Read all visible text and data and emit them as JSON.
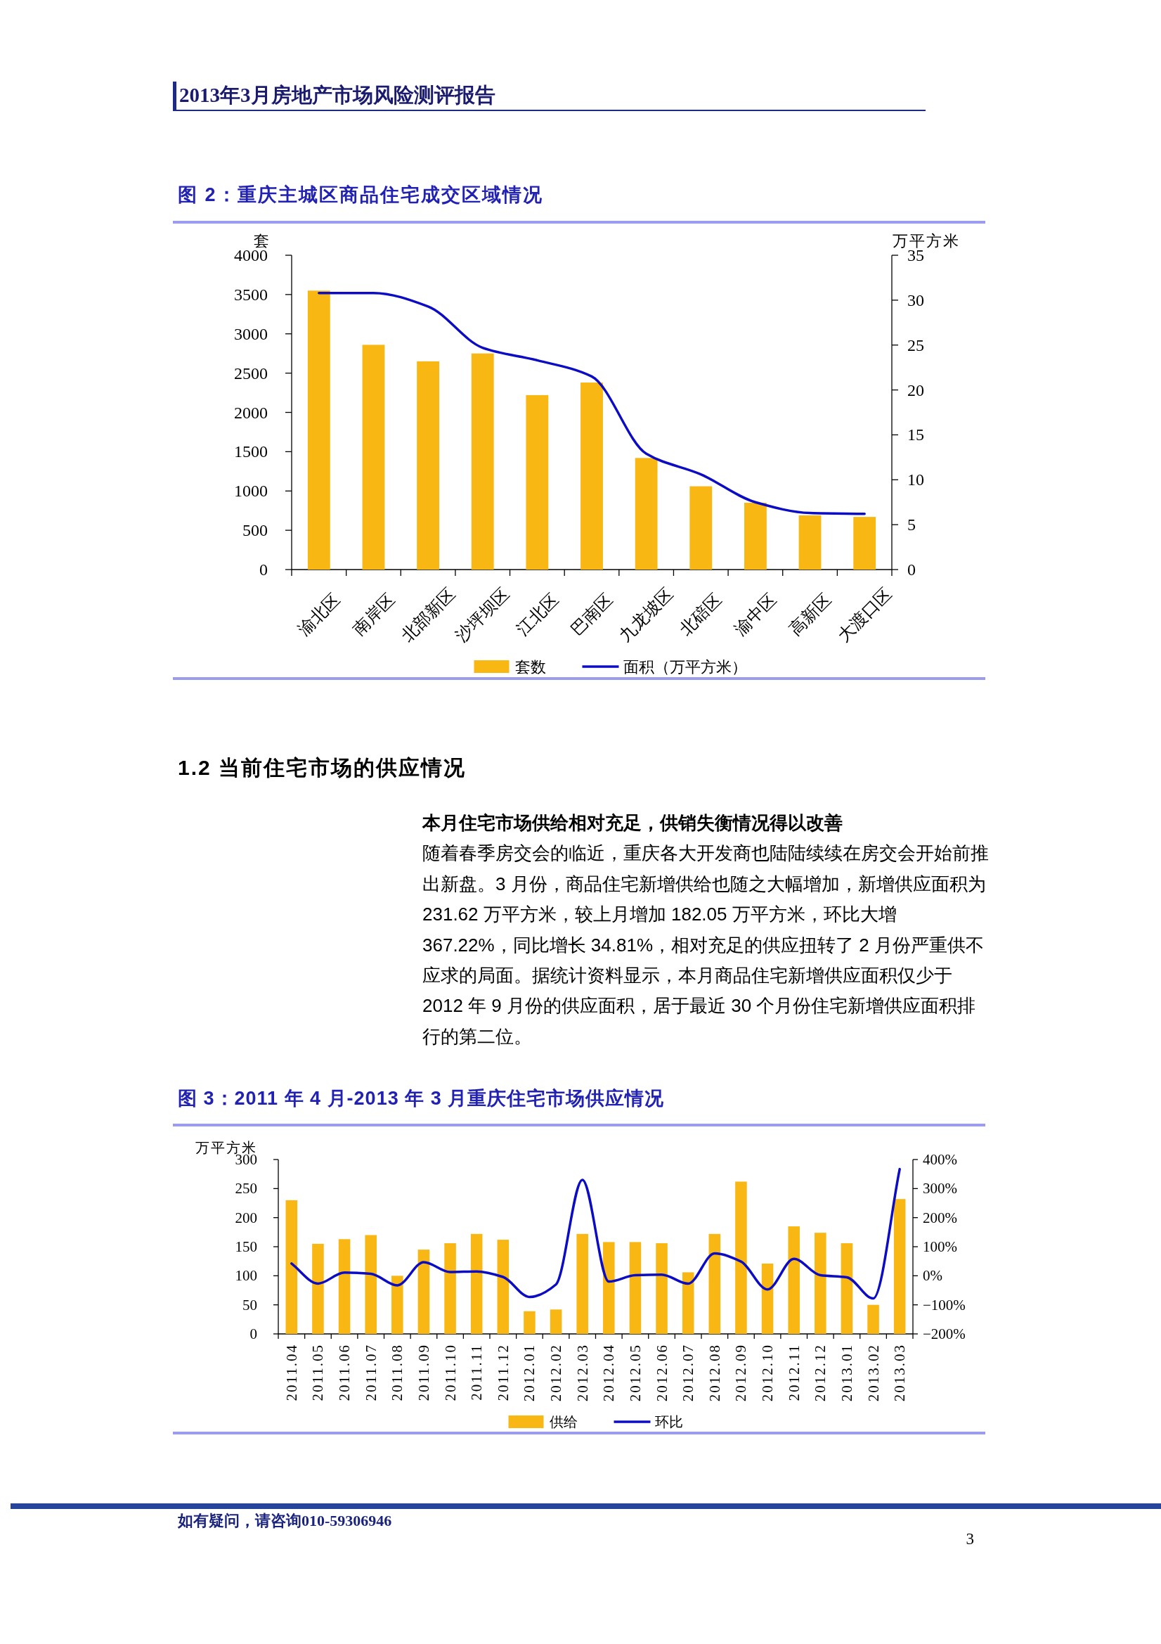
{
  "chart_data": [
    {
      "type": "other",
      "title": "2013年3月房地产市场风险测评报告"
    },
    {
      "type": "bar",
      "title": "图 2：重庆主城区商品住宅成交区域情况",
      "categories": [
        "渝北区",
        "南岸区",
        "北部新区",
        "沙坪坝区",
        "江北区",
        "巴南区",
        "九龙坡区",
        "北碚区",
        "渝中区",
        "高新区",
        "大渡口区"
      ],
      "series": [
        {
          "name": "套数",
          "type": "bar",
          "color": "#f9b714",
          "values": [
            3550,
            2860,
            2650,
            2750,
            2220,
            2380,
            1420,
            1060,
            850,
            690,
            670
          ]
        },
        {
          "name": "面积（万平方米）",
          "type": "line",
          "axis": "y2",
          "color": "#0c0cc4",
          "values": [
            30.8,
            30.8,
            29.3,
            24.7,
            23.3,
            21.5,
            12.9,
            10.6,
            7.5,
            6.3,
            6.2
          ]
        }
      ],
      "ylabel": "套",
      "y2label": "万平方米",
      "ylim": [
        0,
        4000
      ],
      "yticks": [
        0,
        500,
        1000,
        1500,
        2000,
        2500,
        3000,
        3500,
        4000
      ],
      "y2lim": [
        0,
        35
      ],
      "y2ticks": [
        0,
        5,
        10,
        15,
        20,
        25,
        30,
        35
      ],
      "legend": "bottom"
    },
    {
      "type": "other",
      "title": "1.2 当前住宅市场的供应情况",
      "subtitle": "本月住宅市场供给相对充足，供销失衡情况得以改善",
      "annotations": [
        "随着春季房交会的临近，重庆各大开发商也陆陆续续在房交会开始前推出新盘。3 月份，商品住宅新增供给也随之大幅增加，新增供应面积为 231.62 万平方米，较上月增加 182.05 万平方米，环比大增 367.22%，同比增长 34.81%，相对充足的供应扭转了 2 月份严重供不应求的局面。据统计资料显示，本月商品住宅新增供应面积仅少于 2012 年 9 月份的供应面积，居于最近 30 个月份住宅新增供应面积排行的第二位。"
      ]
    },
    {
      "type": "bar",
      "title": "图 3：2011 年 4 月-2013 年 3 月重庆住宅市场供应情况",
      "categories": [
        "2011.04",
        "2011.05",
        "2011.06",
        "2011.07",
        "2011.08",
        "2011.09",
        "2011.10",
        "2011.11",
        "2011.12",
        "2012.01",
        "2012.02",
        "2012.03",
        "2012.04",
        "2012.05",
        "2012.06",
        "2012.07",
        "2012.08",
        "2012.09",
        "2012.10",
        "2012.11",
        "2012.12",
        "2013.01",
        "2013.02",
        "2013.03"
      ],
      "series": [
        {
          "name": "供给",
          "type": "bar",
          "color": "#f9b714",
          "values": [
            230,
            155,
            163,
            170,
            100,
            145,
            156,
            172,
            162,
            39,
            42,
            172,
            158,
            158,
            156,
            106,
            172,
            262,
            121,
            185,
            174,
            156,
            50,
            232
          ]
        },
        {
          "name": "环比",
          "type": "line",
          "axis": "y2",
          "color": "#0c0cc4",
          "values": [
            42,
            -27,
            11,
            7,
            -33,
            47,
            13,
            15,
            -4,
            -73,
            -30,
            330,
            -20,
            2,
            4,
            -27,
            77,
            49,
            -47,
            58,
            2,
            -5,
            -78,
            367
          ]
        }
      ],
      "ylabel": "万平方米",
      "ylim": [
        0,
        300
      ],
      "yticks": [
        0,
        50,
        100,
        150,
        200,
        250,
        300
      ],
      "y2lim": [
        -200,
        400
      ],
      "y2ticks": [
        {
          "value": -200,
          "label": "−200%"
        },
        {
          "value": -100,
          "label": "−100%"
        },
        {
          "value": 0,
          "label": "0%"
        },
        {
          "value": 100,
          "label": "100%"
        },
        {
          "value": 200,
          "label": "200%"
        },
        {
          "value": 300,
          "label": "300%"
        },
        {
          "value": 400,
          "label": "400%"
        }
      ],
      "legend": "bottom"
    },
    {
      "type": "other",
      "annotations": [
        "如有疑问，请咨询010-59306946",
        "3"
      ]
    }
  ]
}
